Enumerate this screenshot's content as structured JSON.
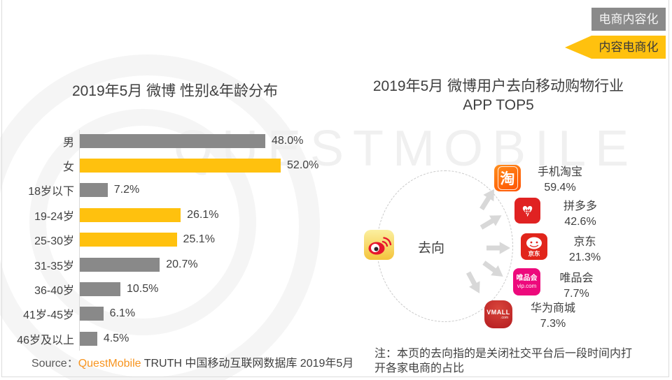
{
  "header_badges": {
    "top": "电商内容化",
    "bottom": "内容电商化"
  },
  "watermark": "QUESTMOBILE",
  "left_chart": {
    "title": "2019年5月 微博 性别&年龄分布",
    "rows": [
      {
        "label": "男",
        "value": 48.0,
        "value_label": "48.0%",
        "color": "gray"
      },
      {
        "label": "女",
        "value": 52.0,
        "value_label": "52.0%",
        "color": "yellow"
      },
      {
        "label": "18岁以下",
        "value": 7.2,
        "value_label": "7.2%",
        "color": "gray"
      },
      {
        "label": "19-24岁",
        "value": 26.1,
        "value_label": "26.1%",
        "color": "yellow"
      },
      {
        "label": "25-30岁",
        "value": 25.1,
        "value_label": "25.1%",
        "color": "yellow"
      },
      {
        "label": "31-35岁",
        "value": 20.7,
        "value_label": "20.7%",
        "color": "gray"
      },
      {
        "label": "36-40岁",
        "value": 10.5,
        "value_label": "10.5%",
        "color": "gray"
      },
      {
        "label": "41岁-45岁",
        "value": 6.1,
        "value_label": "6.1%",
        "color": "gray"
      },
      {
        "label": "46岁及以上",
        "value": 4.5,
        "value_label": "4.5%",
        "color": "gray"
      }
    ],
    "source": {
      "prefix": "Source：",
      "brand": "QuestMobile",
      "rest": " TRUTH 中国移动互联网数据库 2019年5月"
    }
  },
  "right_diagram": {
    "title_line1": "2019年5月 微博用户去向移动购物行业",
    "title_line2": "APP TOP5",
    "center_label": "去向",
    "apps": [
      {
        "name": "手机淘宝",
        "value_label": "59.4%",
        "icon": "taobao-icon",
        "icon_text": "淘"
      },
      {
        "name": "拼多多",
        "value_label": "42.6%",
        "icon": "pinduoduo-icon",
        "icon_glyph": "♥",
        "icon_text": "拼"
      },
      {
        "name": "京东",
        "value_label": "21.3%",
        "icon": "jd-icon",
        "icon_text": "京东"
      },
      {
        "name": "唯品会",
        "value_label": "7.7%",
        "icon": "vip-icon",
        "icon_line1": "唯品会",
        "icon_line2": "vip.com"
      },
      {
        "name": "华为商城",
        "value_label": "7.3%",
        "icon": "vmall-icon",
        "icon_line1": "VMALL",
        "icon_line2": ".com"
      }
    ],
    "note": "注：本页的去向指的是关闭社交平台后一段时间内打开各家电商的占比"
  },
  "colors": {
    "yellow": "#FFC10E",
    "gray": "#898989",
    "brand_orange": "#F7941E"
  },
  "chart_data": [
    {
      "type": "bar",
      "orientation": "horizontal",
      "title": "2019年5月 微博 性别&年龄分布",
      "categories": [
        "男",
        "女",
        "18岁以下",
        "19-24岁",
        "25-30岁",
        "31-35岁",
        "36-40岁",
        "41岁-45岁",
        "46岁及以上"
      ],
      "values": [
        48.0,
        52.0,
        7.2,
        26.1,
        25.1,
        20.7,
        10.5,
        6.1,
        4.5
      ],
      "value_labels": [
        "48.0%",
        "52.0%",
        "7.2%",
        "26.1%",
        "25.1%",
        "20.7%",
        "10.5%",
        "6.1%",
        "4.5%"
      ],
      "bar_colors": [
        "gray",
        "yellow",
        "gray",
        "yellow",
        "yellow",
        "gray",
        "gray",
        "gray",
        "gray"
      ],
      "unit": "%",
      "xlim": [
        0,
        60
      ],
      "grid": false,
      "legend": false
    },
    {
      "type": "table",
      "title": "2019年5月 微博用户去向移动购物行业 APP TOP5",
      "center_icon": "weibo-icon",
      "center_label": "去向",
      "categories": [
        "手机淘宝",
        "拼多多",
        "京东",
        "唯品会",
        "华为商城"
      ],
      "values": [
        59.4,
        42.6,
        21.3,
        7.7,
        7.3
      ],
      "unit": "%"
    }
  ]
}
